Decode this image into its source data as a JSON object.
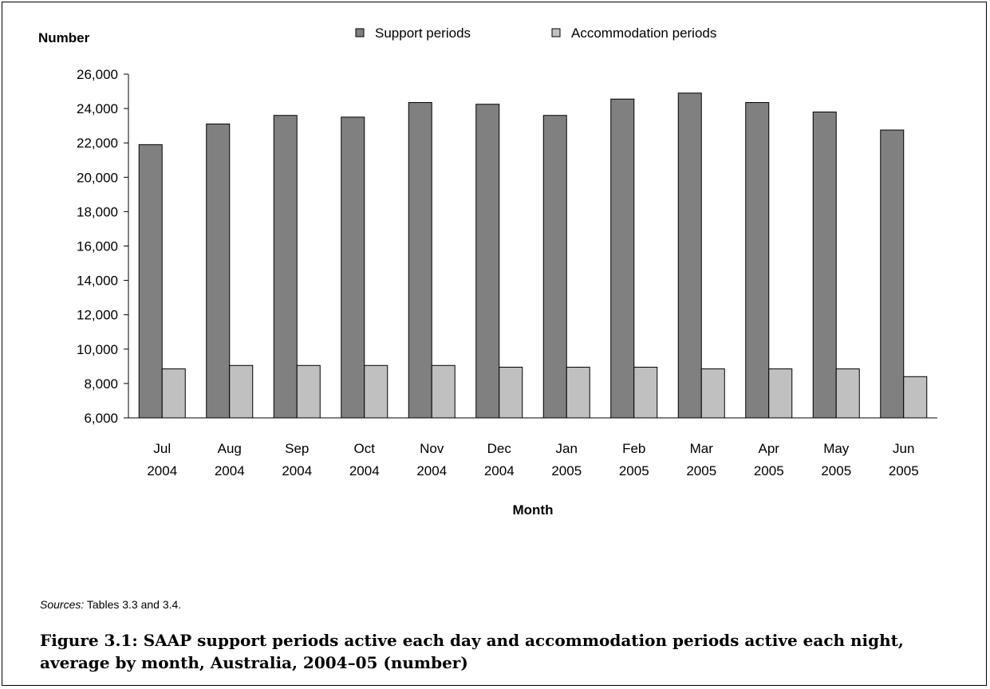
{
  "chart_data": {
    "type": "bar",
    "ylabel": "Number",
    "xlabel": "Month",
    "ylim": [
      6000,
      26000
    ],
    "ytick_step": 2000,
    "yticks": [
      "6,000",
      "8,000",
      "10,000",
      "12,000",
      "14,000",
      "16,000",
      "18,000",
      "20,000",
      "22,000",
      "24,000",
      "26,000"
    ],
    "categories": [
      "Jul 2004",
      "Aug 2004",
      "Sep 2004",
      "Oct 2004",
      "Nov 2004",
      "Dec 2004",
      "Jan 2005",
      "Feb 2005",
      "Mar 2005",
      "Apr 2005",
      "May 2005",
      "Jun 2005"
    ],
    "category_lines": [
      [
        "Jul",
        "2004"
      ],
      [
        "Aug",
        "2004"
      ],
      [
        "Sep",
        "2004"
      ],
      [
        "Oct",
        "2004"
      ],
      [
        "Nov",
        "2004"
      ],
      [
        "Dec",
        "2004"
      ],
      [
        "Jan",
        "2005"
      ],
      [
        "Feb",
        "2005"
      ],
      [
        "Mar",
        "2005"
      ],
      [
        "Apr",
        "2005"
      ],
      [
        "May",
        "2005"
      ],
      [
        "Jun",
        "2005"
      ]
    ],
    "series": [
      {
        "name": "Support periods",
        "color": "#808080",
        "values": [
          21900,
          23100,
          23600,
          23500,
          24350,
          24250,
          23600,
          24550,
          24900,
          24350,
          23800,
          22750
        ]
      },
      {
        "name": "Accommodation periods",
        "color": "#c0c0c0",
        "values": [
          8850,
          9050,
          9050,
          9050,
          9050,
          8950,
          8950,
          8950,
          8850,
          8850,
          8850,
          8400
        ]
      }
    ],
    "legend_position": "top",
    "grid": false
  },
  "sources": {
    "label": "Sources:",
    "text": " Tables 3.3 and 3.4."
  },
  "caption": "Figure 3.1: SAAP support periods active each day and accommodation periods active each night, average by month, Australia, 2004–05 (number)"
}
